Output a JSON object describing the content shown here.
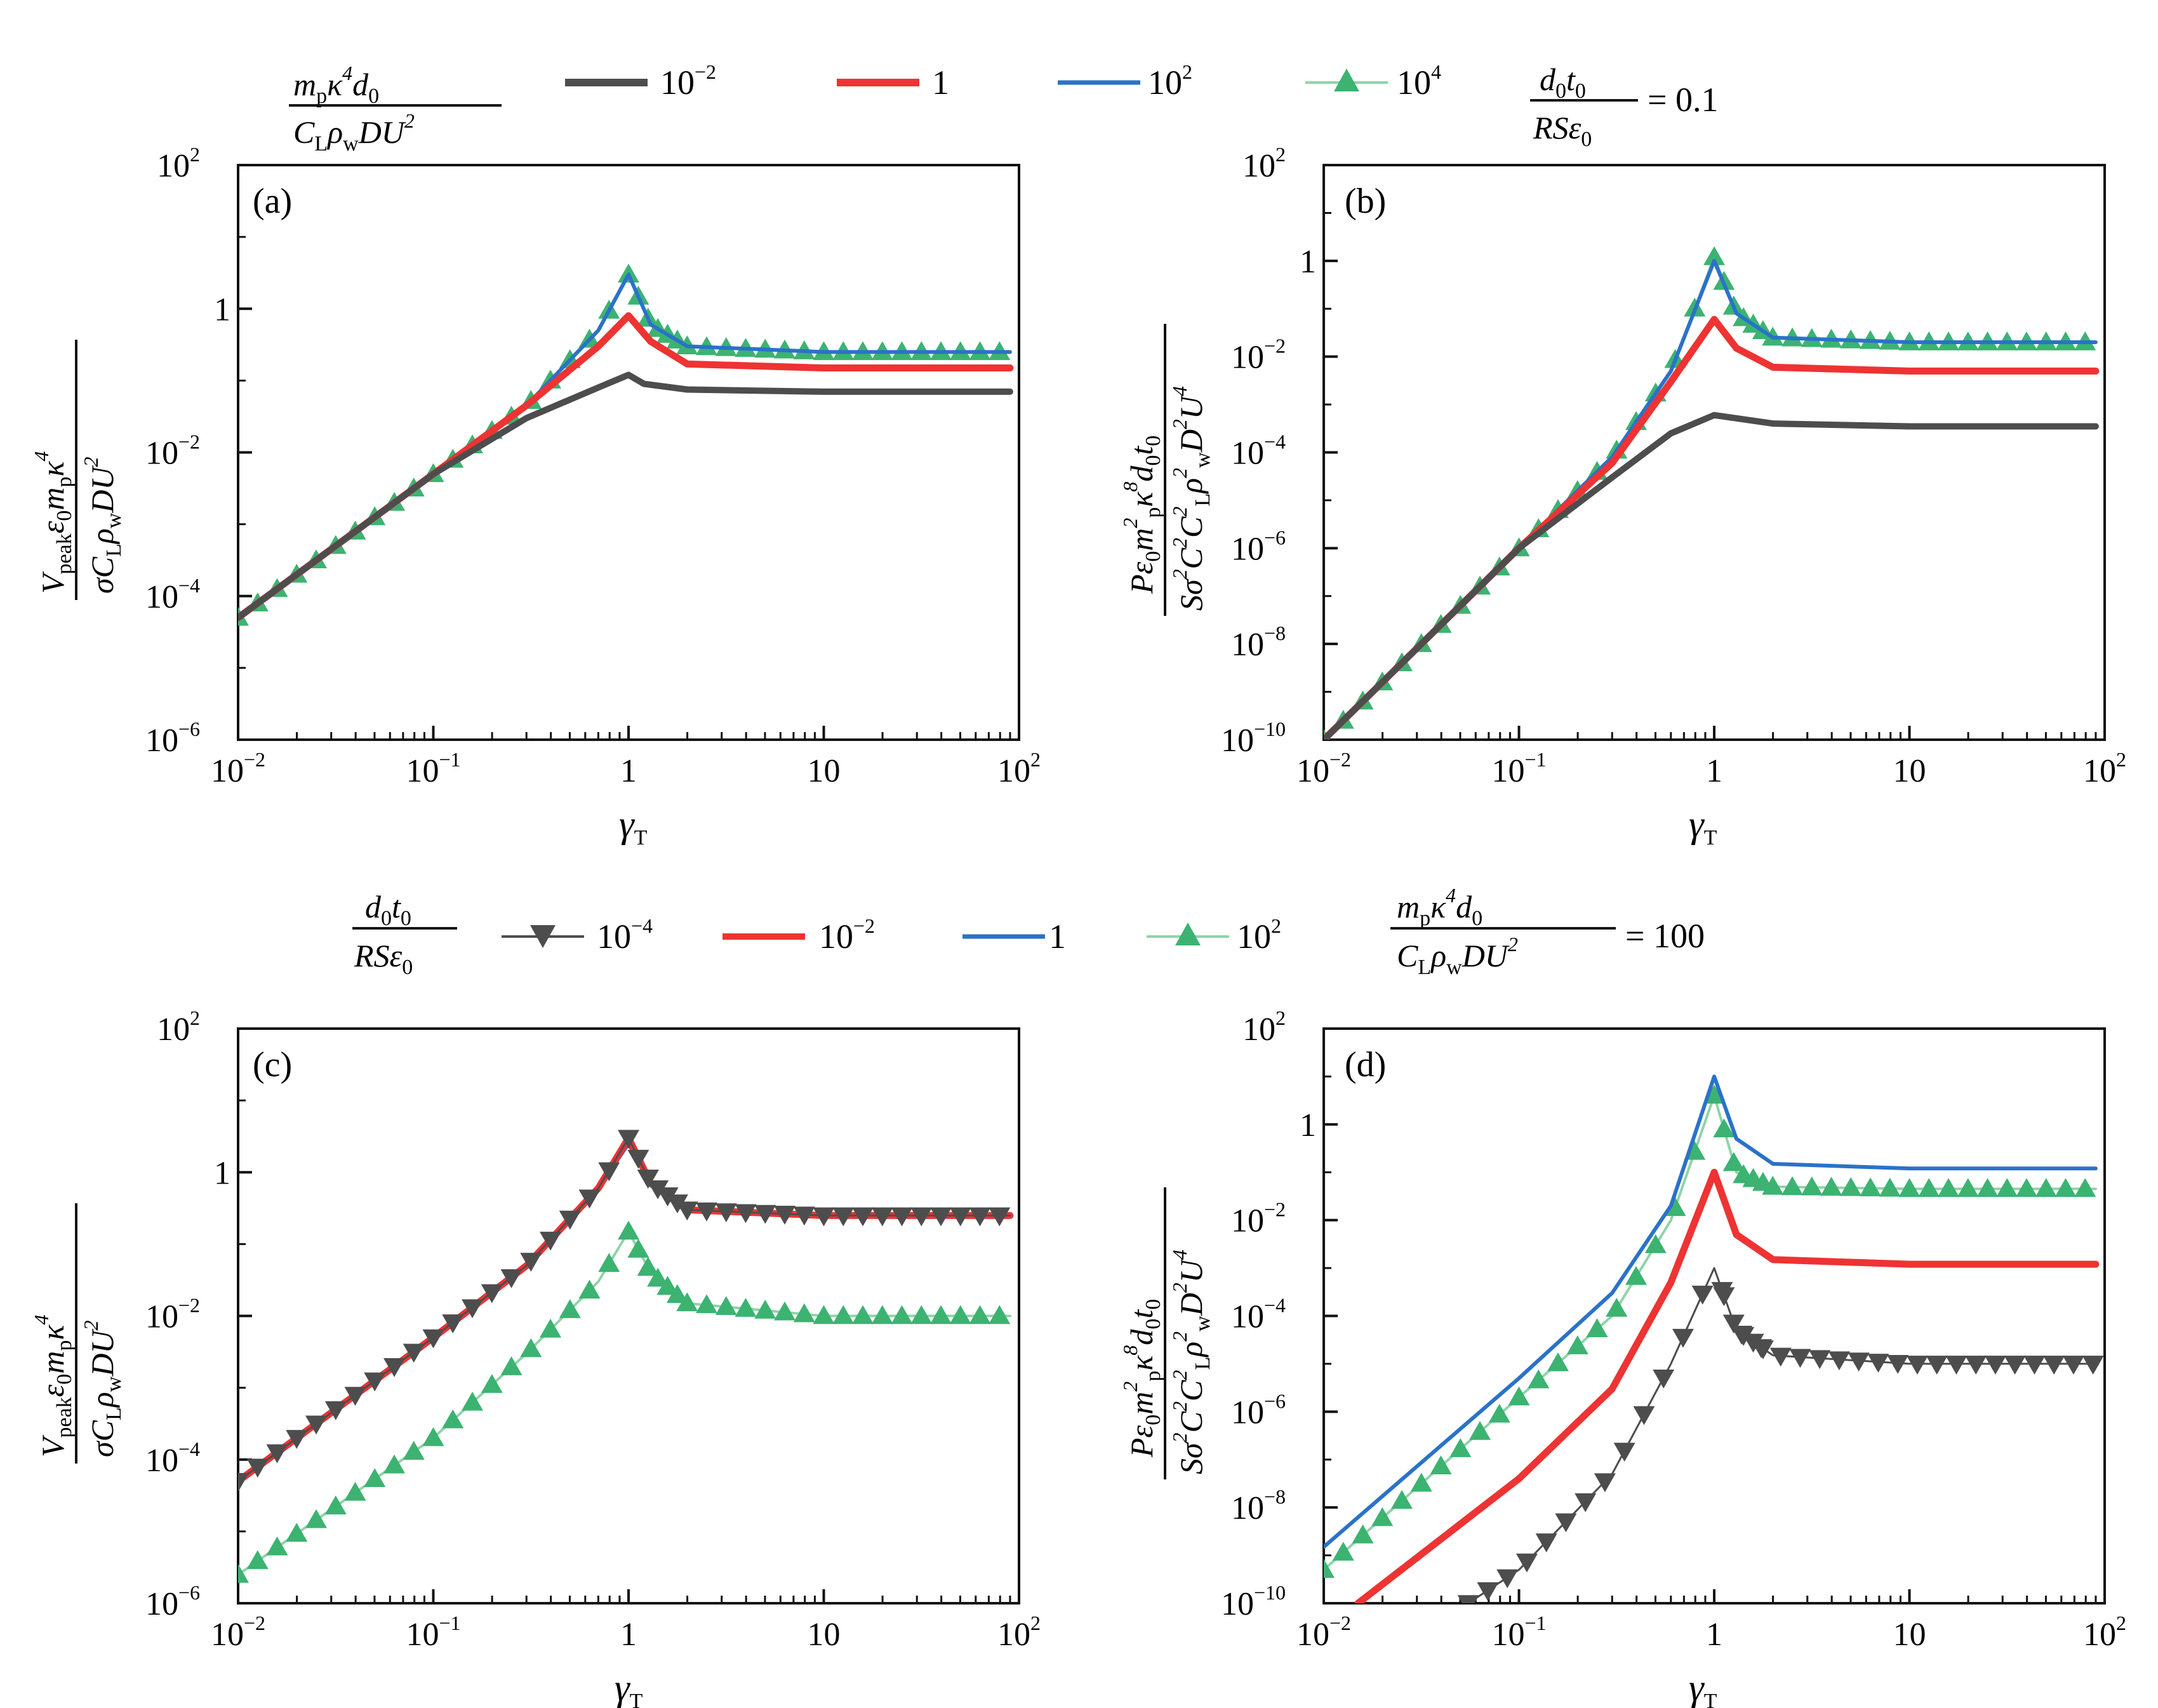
{
  "chart_data": [
    {
      "panel": "(a)",
      "type": "line",
      "xscale": "log",
      "yscale": "log",
      "xlim": [
        0.01,
        100
      ],
      "ylim": [
        1e-06,
        100
      ],
      "xlabel": "γT",
      "ylabel": "V_peak ε0 m_p κ^4 / (σ C_L ρ_w D U^2)",
      "x_ticks": [
        "10^-2",
        "10^-1",
        "1",
        "10",
        "10^2"
      ],
      "y_ticks": [
        "10^-6",
        "10^-4",
        "10^-2",
        "1",
        "10^2"
      ],
      "legend_title": "m_p κ^4 d_0 / (C_L ρ_w D U^2)",
      "fixed_param": "d_0 t_0 / (R S ε_0) = 0.1",
      "series": [
        {
          "name": "10^-2",
          "x": [
            0.01,
            0.1,
            0.3,
            0.7,
            1.0,
            1.2,
            2,
            10,
            90
          ],
          "y": [
            5e-05,
            0.005,
            0.03,
            0.08,
            0.12,
            0.09,
            0.075,
            0.07,
            0.07
          ]
        },
        {
          "name": "1",
          "x": [
            0.01,
            0.1,
            0.3,
            0.7,
            1.0,
            1.3,
            2,
            10,
            90
          ],
          "y": [
            5e-05,
            0.005,
            0.045,
            0.3,
            0.8,
            0.35,
            0.17,
            0.15,
            0.15
          ]
        },
        {
          "name": "10^2",
          "x": [
            0.01,
            0.1,
            0.3,
            0.7,
            1.0,
            1.3,
            2,
            10,
            90
          ],
          "y": [
            5e-05,
            0.005,
            0.045,
            0.5,
            3.0,
            0.6,
            0.3,
            0.25,
            0.25
          ]
        },
        {
          "name": "10^4",
          "x": [
            0.01,
            0.1,
            0.3,
            0.7,
            1.0,
            1.3,
            2,
            10,
            90
          ],
          "y": [
            5e-05,
            0.005,
            0.045,
            0.5,
            3.0,
            0.6,
            0.3,
            0.25,
            0.25
          ]
        }
      ]
    },
    {
      "panel": "(b)",
      "type": "line",
      "xscale": "log",
      "yscale": "log",
      "xlim": [
        0.01,
        100
      ],
      "ylim": [
        1e-10,
        100
      ],
      "xlabel": "γT",
      "ylabel": "P ε0 m_p^2 κ^8 d_0 t_0 / (S σ^2 C^2 C_L^2 ρ_w^2 D^2 U^4)",
      "x_ticks": [
        "10^-2",
        "10^-1",
        "1",
        "10",
        "10^2"
      ],
      "y_ticks": [
        "10^-10",
        "10^-8",
        "10^-6",
        "10^-4",
        "10^-2",
        "1",
        "10^2"
      ],
      "series": [
        {
          "name": "10^-2",
          "x": [
            0.01,
            0.1,
            0.3,
            0.6,
            1.0,
            2,
            10,
            90
          ],
          "y": [
            1e-10,
            1e-06,
            3e-05,
            0.00025,
            0.0006,
            0.0004,
            0.00035,
            0.00035
          ]
        },
        {
          "name": "1",
          "x": [
            0.01,
            0.1,
            0.3,
            0.6,
            1.0,
            1.3,
            2,
            10,
            90
          ],
          "y": [
            1e-10,
            1e-06,
            6e-05,
            0.003,
            0.06,
            0.015,
            0.006,
            0.005,
            0.005
          ]
        },
        {
          "name": "10^2",
          "x": [
            0.01,
            0.1,
            0.3,
            0.6,
            1.0,
            1.3,
            2,
            10,
            90
          ],
          "y": [
            1e-10,
            1e-06,
            8e-05,
            0.005,
            1.0,
            0.08,
            0.025,
            0.02,
            0.02
          ]
        },
        {
          "name": "10^4",
          "x": [
            0.01,
            0.1,
            0.3,
            0.6,
            1.0,
            1.3,
            2,
            10,
            90
          ],
          "y": [
            1e-10,
            1e-06,
            8e-05,
            0.005,
            1.2,
            0.08,
            0.025,
            0.02,
            0.02
          ]
        }
      ]
    },
    {
      "panel": "(c)",
      "type": "line",
      "xscale": "log",
      "yscale": "log",
      "xlim": [
        0.01,
        100
      ],
      "ylim": [
        1e-06,
        100
      ],
      "xlabel": "γT",
      "ylabel": "V_peak ε0 m_p κ^4 / (σ C_L ρ_w D U^2)",
      "x_ticks": [
        "10^-2",
        "10^-1",
        "1",
        "10",
        "10^2"
      ],
      "y_ticks": [
        "10^-6",
        "10^-4",
        "10^-2",
        "1",
        "10^2"
      ],
      "legend_title": "d_0 t_0 / (R S ε_0)",
      "fixed_param": "m_p κ^4 d_0 / (C_L ρ_w D U^2) = 100",
      "series": [
        {
          "name": "10^-4",
          "x": [
            0.01,
            0.1,
            0.3,
            0.7,
            1.0,
            1.3,
            2,
            10,
            90
          ],
          "y": [
            5e-05,
            0.005,
            0.05,
            0.6,
            3.0,
            0.7,
            0.3,
            0.25,
            0.25
          ]
        },
        {
          "name": "10^-2",
          "x": [
            0.01,
            0.1,
            0.3,
            0.7,
            1.0,
            1.3,
            2,
            10,
            90
          ],
          "y": [
            5e-05,
            0.005,
            0.05,
            0.6,
            3.0,
            0.7,
            0.3,
            0.25,
            0.25
          ]
        },
        {
          "name": "1",
          "x": [
            0.01,
            0.1,
            0.3,
            0.7,
            1.0,
            1.3,
            2,
            10,
            90
          ],
          "y": [
            5e-05,
            0.005,
            0.05,
            0.6,
            2.5,
            0.7,
            0.3,
            0.25,
            0.25
          ]
        },
        {
          "name": "10^2",
          "x": [
            0.01,
            0.1,
            0.3,
            0.7,
            1.0,
            1.3,
            2,
            10,
            90
          ],
          "y": [
            2.5e-06,
            0.0002,
            0.003,
            0.03,
            0.15,
            0.04,
            0.015,
            0.01,
            0.01
          ]
        }
      ]
    },
    {
      "panel": "(d)",
      "type": "line",
      "xscale": "log",
      "yscale": "log",
      "xlim": [
        0.01,
        100
      ],
      "ylim": [
        1e-10,
        100
      ],
      "xlabel": "γT",
      "ylabel": "P ε0 m_p^2 κ^8 d_0 t_0 / (S σ^2 C^2 C_L^2 ρ_w^2 D^2 U^4)",
      "x_ticks": [
        "10^-2",
        "10^-1",
        "1",
        "10",
        "10^2"
      ],
      "y_ticks": [
        "10^-10",
        "10^-8",
        "10^-6",
        "10^-4",
        "10^-2",
        "1",
        "10^2"
      ],
      "series": [
        {
          "name": "10^-4",
          "x": [
            0.055,
            0.1,
            0.3,
            0.6,
            1.0,
            1.3,
            2,
            10,
            90
          ],
          "y": [
            1e-10,
            5e-10,
            5e-08,
            1e-05,
            0.001,
            5e-05,
            1.5e-05,
            1e-05,
            1e-05
          ]
        },
        {
          "name": "10^-2",
          "x": [
            0.015,
            0.1,
            0.3,
            0.6,
            1.0,
            1.3,
            2,
            10,
            90
          ],
          "y": [
            1e-10,
            4e-08,
            3e-06,
            0.0005,
            0.1,
            0.005,
            0.0015,
            0.0012,
            0.0012
          ]
        },
        {
          "name": "1",
          "x": [
            0.01,
            0.1,
            0.3,
            0.6,
            1.0,
            1.3,
            2,
            10,
            90
          ],
          "y": [
            1.5e-09,
            5e-06,
            0.0003,
            0.02,
            10,
            0.5,
            0.15,
            0.12,
            0.12
          ]
        },
        {
          "name": "10^2",
          "x": [
            0.01,
            0.1,
            0.3,
            0.6,
            1.0,
            1.3,
            2,
            10,
            90
          ],
          "y": [
            5e-10,
            2e-06,
            0.0001,
            0.01,
            4,
            0.1,
            0.05,
            0.045,
            0.045
          ]
        }
      ]
    }
  ],
  "panel_labels": [
    "(a)",
    "(b)",
    "(c)",
    "(d)"
  ],
  "tick_text": {
    "x": [
      "10",
      "−2",
      "10",
      "−1",
      "1",
      "10",
      "10",
      "2"
    ],
    "y_a": [
      "10",
      "2",
      "1",
      "10",
      "−2",
      "10",
      "−4",
      "10",
      "−6"
    ],
    "y_b": [
      "10",
      "2",
      "1",
      "10",
      "−2",
      "10",
      "−4",
      "10",
      "−6",
      "10",
      "−8",
      "10",
      "−10"
    ]
  },
  "legend_top": {
    "title_num": "m",
    "title_num_sub": "p",
    "title_num_kappa": "κ",
    "title_num_sup": "4",
    "title_num_d": "d",
    "title_num_dsub": "0",
    "title_den": "C",
    "title_den_sub": "L",
    "title_den_rho": "ρ",
    "title_den_rsub": "w",
    "title_den_du": "DU",
    "title_den_sup": "2",
    "items": [
      {
        "base": "10",
        "exp": "−2"
      },
      {
        "base": "1",
        "exp": ""
      },
      {
        "base": "10",
        "exp": "2"
      },
      {
        "base": "10",
        "exp": "4"
      }
    ],
    "fixed_num": "d",
    "fixed_num_sub": "0",
    "fixed_num_t": "t",
    "fixed_num_tsub": "0",
    "fixed_den": "RSε",
    "fixed_den_sub": "0",
    "fixed_val": "= 0.1"
  },
  "legend_mid": {
    "title_num": "d",
    "title_num_sub": "0",
    "title_num_t": "t",
    "title_num_tsub": "0",
    "title_den": "RSε",
    "title_den_sub": "0",
    "items": [
      {
        "base": "10",
        "exp": "−4"
      },
      {
        "base": "10",
        "exp": "−2"
      },
      {
        "base": "1",
        "exp": ""
      },
      {
        "base": "10",
        "exp": "2"
      }
    ],
    "fixed_val": "= 100"
  },
  "axis_labels": {
    "x": "γ",
    "x_sub": "T",
    "ya_num": "V",
    "ya_num_sub": "peak",
    "ya_num_rest": "ε",
    "ya_num_rest_sub": "0",
    "ya_num_m": "m",
    "ya_num_m_sub": "p",
    "ya_num_k": "κ",
    "ya_num_k_sup": "4",
    "ya_den": "σC",
    "ya_den_sub": "L",
    "ya_den_rho": "ρ",
    "ya_den_rsub": "w",
    "ya_den_du": "DU",
    "ya_den_sup": "2",
    "yb_num": "Pε",
    "yb_num_sub": "0",
    "yb_num_m": "m",
    "yb_num_msup": "2",
    "yb_num_msub": "p",
    "yb_num_k": "κ",
    "yb_num_ksup": "8",
    "yb_num_d": "d",
    "yb_num_dsub": "0",
    "yb_num_t": "t",
    "yb_num_tsub": "0",
    "yb_den": "Sσ",
    "yb_den_s1": "2",
    "yb_den_c": "C",
    "yb_den_s2": "2",
    "yb_den_cl": "C",
    "yb_den_cl_sup": "2",
    "yb_den_cl_sub": "L",
    "yb_den_rho": "ρ",
    "yb_den_rho_sup": "2",
    "yb_den_rho_sub": "w",
    "yb_den_d": "D",
    "yb_den_d_sup": "2",
    "yb_den_u": "U",
    "yb_den_u_sup": "4"
  },
  "colors": {
    "gray": "#4d4d4d",
    "red": "#ee3333",
    "blue": "#2a72c9",
    "green": "#3cb371",
    "green_line": "#8fd3a8"
  }
}
